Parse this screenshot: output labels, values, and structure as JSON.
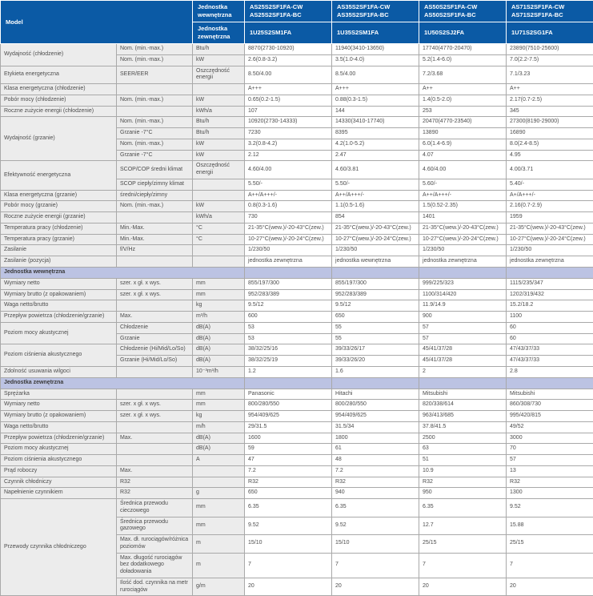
{
  "colors": {
    "header-blue": "#0b5aa5",
    "band": "#bcc3e3",
    "cell-gray": "#ececec",
    "border": "#a9a9a9",
    "text": "#4d4d4d"
  },
  "header": {
    "model_label": "Model",
    "indoor_label": "Jednostka wewnętrzna",
    "outdoor_label": "Jednostka zewnętrzna",
    "indoor_models": [
      "AS25S2SF1FA-CW\nAS25S2SF1FA-BC",
      "AS35S2SF1FA-CW\nAS35S2SF1FA-BC",
      "AS50S2SF1FA-CW\nAS50S2SF1FA-BC",
      "AS71S2SF1FA-CW\nAS71S2SF1FA-BC"
    ],
    "outdoor_models": [
      "1U25S2SM1FA",
      "1U35S2SM1FA",
      "1U50S2SJ2FA",
      "1U71S2SG1FA"
    ]
  },
  "rows": [
    {
      "cells": [
        {
          "t": "Wydajność (chłodzenie)",
          "c": "l",
          "rs": 2
        },
        {
          "t": "Nom. (min.-max.)",
          "c": "s"
        },
        {
          "t": "Btu/h",
          "c": "u"
        },
        {
          "t": "8870(2730-10920)"
        },
        {
          "t": "11940(3410-13650)"
        },
        {
          "t": "17740(4770-20470)"
        },
        {
          "t": "23890(7510-25600)"
        }
      ]
    },
    {
      "cells": [
        {
          "t": "Nom. (min.-max.)",
          "c": "s"
        },
        {
          "t": "kW",
          "c": "u"
        },
        {
          "t": "2.6(0.8-3.2)"
        },
        {
          "t": "3.5(1.0-4.0)"
        },
        {
          "t": "5.2(1.4-6.0)"
        },
        {
          "t": "7.0(2.2-7.5)"
        }
      ]
    },
    {
      "cells": [
        {
          "t": "Etykieta energetyczna",
          "c": "l"
        },
        {
          "t": "SEER/EER",
          "c": "s"
        },
        {
          "t": "Oszczędność energii",
          "c": "u"
        },
        {
          "t": "8.50/4.00"
        },
        {
          "t": "8.5/4.00"
        },
        {
          "t": "7.2/3.68"
        },
        {
          "t": "7.1/3.23"
        }
      ]
    },
    {
      "cells": [
        {
          "t": "Klasa energetyczna (chłodzenie)",
          "c": "l"
        },
        {
          "t": "",
          "c": "s"
        },
        {
          "t": "",
          "c": "u"
        },
        {
          "t": "A+++"
        },
        {
          "t": "A+++"
        },
        {
          "t": "A++"
        },
        {
          "t": "A++"
        }
      ]
    },
    {
      "cells": [
        {
          "t": "Pobór mocy (chłodzenie)",
          "c": "l"
        },
        {
          "t": "Nom. (min.-max.)",
          "c": "s"
        },
        {
          "t": "kW",
          "c": "u"
        },
        {
          "t": "0.65(0.2-1.5)"
        },
        {
          "t": "0.88(0.3-1.5)"
        },
        {
          "t": "1.4(0.5-2.0)"
        },
        {
          "t": "2.17(0.7-2.5)"
        }
      ]
    },
    {
      "cells": [
        {
          "t": "Roczne zużycie energii (chłodzenie)",
          "c": "l"
        },
        {
          "t": "",
          "c": "s"
        },
        {
          "t": "kWh/a",
          "c": "u"
        },
        {
          "t": "107"
        },
        {
          "t": "144"
        },
        {
          "t": "253"
        },
        {
          "t": "345"
        }
      ]
    },
    {
      "cells": [
        {
          "t": "Wydajność (grzanie)",
          "c": "l",
          "rs": 4
        },
        {
          "t": "Nom. (min.-max.)",
          "c": "s"
        },
        {
          "t": "Btu/h",
          "c": "u"
        },
        {
          "t": "10920(2730-14333)"
        },
        {
          "t": "14330(3410-17740)"
        },
        {
          "t": "20470(4770-23540)"
        },
        {
          "t": "27300(8190-29000)"
        }
      ]
    },
    {
      "cells": [
        {
          "t": "Grzanie -7°C",
          "c": "s"
        },
        {
          "t": "Btu/h",
          "c": "u"
        },
        {
          "t": "7230"
        },
        {
          "t": "8395"
        },
        {
          "t": "13890"
        },
        {
          "t": "16890"
        }
      ]
    },
    {
      "cells": [
        {
          "t": "Nom. (min.-max.)",
          "c": "s"
        },
        {
          "t": "kW",
          "c": "u"
        },
        {
          "t": "3.2(0.8-4.2)"
        },
        {
          "t": "4.2(1.0-5.2)"
        },
        {
          "t": "6.0(1.4-6.9)"
        },
        {
          "t": "8.0(2.4-8.5)"
        }
      ]
    },
    {
      "cells": [
        {
          "t": "Grzanie -7°C",
          "c": "s"
        },
        {
          "t": "kW",
          "c": "u"
        },
        {
          "t": "2.12"
        },
        {
          "t": "2.47"
        },
        {
          "t": "4.07"
        },
        {
          "t": "4.95"
        }
      ]
    },
    {
      "cells": [
        {
          "t": "Efektywność energetyczna",
          "c": "l",
          "rs": 2
        },
        {
          "t": "SCOP/COP średni klimat",
          "c": "s"
        },
        {
          "t": "Oszczędność energii",
          "c": "u"
        },
        {
          "t": "4.60/4.00"
        },
        {
          "t": "4.60/3.81"
        },
        {
          "t": "4.60/4.00"
        },
        {
          "t": "4.00/3.71"
        }
      ]
    },
    {
      "cells": [
        {
          "t": "SCOP ciepły/zimny klimat",
          "c": "s"
        },
        {
          "t": "",
          "c": "u"
        },
        {
          "t": "5.50/-"
        },
        {
          "t": "5.50/-"
        },
        {
          "t": "5.60/-"
        },
        {
          "t": "5.40/-"
        }
      ]
    },
    {
      "cells": [
        {
          "t": "Klasa energetyczna (grzanie)",
          "c": "l"
        },
        {
          "t": "średni/ciepły/zimny",
          "c": "s"
        },
        {
          "t": "",
          "c": "u"
        },
        {
          "t": "A++/A+++/-"
        },
        {
          "t": "A++/A+++/-"
        },
        {
          "t": "A++/A+++/-"
        },
        {
          "t": "A+/A+++/-"
        }
      ]
    },
    {
      "cells": [
        {
          "t": "Pobór mocy (grzanie)",
          "c": "l"
        },
        {
          "t": "Nom. (min.-max.)",
          "c": "s"
        },
        {
          "t": "kW",
          "c": "u"
        },
        {
          "t": "0.8(0.3-1.6)"
        },
        {
          "t": "1.1(0.5-1.6)"
        },
        {
          "t": "1.5(0.52-2.35)"
        },
        {
          "t": "2.16(0.7-2.9)"
        }
      ]
    },
    {
      "cells": [
        {
          "t": "Roczne zużycie energii (grzanie)",
          "c": "l"
        },
        {
          "t": "",
          "c": "s"
        },
        {
          "t": "kWh/a",
          "c": "u"
        },
        {
          "t": "730"
        },
        {
          "t": "854"
        },
        {
          "t": "1401"
        },
        {
          "t": "1959"
        }
      ]
    },
    {
      "cells": [
        {
          "t": "Temperatura pracy (chłodzenie)",
          "c": "l"
        },
        {
          "t": "Min.-Max.",
          "c": "s"
        },
        {
          "t": "°C",
          "c": "u"
        },
        {
          "t": "21-35°C(wew.)/-20-43°C(zew.)"
        },
        {
          "t": "21-35°C(wew.)/-20-43°C(zew.)"
        },
        {
          "t": "21-35°C(wew.)/-20-43°C(zew.)"
        },
        {
          "t": "21-35°C(wew.)/-20-43°C(zew.)"
        }
      ]
    },
    {
      "cells": [
        {
          "t": "Temperatura pracy (grzanie)",
          "c": "l"
        },
        {
          "t": "Min.-Max.",
          "c": "s"
        },
        {
          "t": "°C",
          "c": "u"
        },
        {
          "t": "10-27°C(wew.)/-20-24°C(zew.)"
        },
        {
          "t": "10-27°C(wew.)/-20-24°C(zew.)"
        },
        {
          "t": "10-27°C(wew.)/-20-24°C(zew.)"
        },
        {
          "t": "10-27°C(wew.)/-20-24°C(zew.)"
        }
      ]
    },
    {
      "cells": [
        {
          "t": "Zasilanie",
          "c": "l"
        },
        {
          "t": "f/V/Hz",
          "c": "s"
        },
        {
          "t": "",
          "c": "u"
        },
        {
          "t": "1/230/50"
        },
        {
          "t": "1/230/50"
        },
        {
          "t": "1/230/50"
        },
        {
          "t": "1/230/50"
        }
      ]
    },
    {
      "cells": [
        {
          "t": "Zasilanie (pozycja)",
          "c": "l"
        },
        {
          "t": "",
          "c": "s"
        },
        {
          "t": "",
          "c": "u"
        },
        {
          "t": "jednostka zewnętrzna"
        },
        {
          "t": "jednostka wewnętrzna"
        },
        {
          "t": "jednostka zewnętrzna"
        },
        {
          "t": "jednostka zewnętrzna"
        }
      ]
    },
    {
      "section": "Jednostka wewnętrzna"
    },
    {
      "cells": [
        {
          "t": "Wymiary netto",
          "c": "l"
        },
        {
          "t": "szer. x gł. x wys.",
          "c": "s"
        },
        {
          "t": "mm",
          "c": "u"
        },
        {
          "t": "855/197/300"
        },
        {
          "t": "855/197/300"
        },
        {
          "t": "999/225/323"
        },
        {
          "t": "1115/235/347"
        }
      ]
    },
    {
      "cells": [
        {
          "t": "Wymiary brutto (z opakowaniem)",
          "c": "l"
        },
        {
          "t": "szer. x gł. x wys.",
          "c": "s"
        },
        {
          "t": "mm",
          "c": "u"
        },
        {
          "t": "952/283/389"
        },
        {
          "t": "952/283/389"
        },
        {
          "t": "1100/314/420"
        },
        {
          "t": "1202/319/432"
        }
      ]
    },
    {
      "cells": [
        {
          "t": "Waga netto/brutto",
          "c": "l"
        },
        {
          "t": "",
          "c": "s"
        },
        {
          "t": "kg",
          "c": "u"
        },
        {
          "t": "9.5/12"
        },
        {
          "t": "9.5/12"
        },
        {
          "t": "11.9/14.9"
        },
        {
          "t": "15.2/18.2"
        }
      ]
    },
    {
      "cells": [
        {
          "t": "Przepływ powietrza (chłodzenie/grzanie)",
          "c": "l"
        },
        {
          "t": "Max.",
          "c": "s"
        },
        {
          "t": "m³/h",
          "c": "u"
        },
        {
          "t": "600"
        },
        {
          "t": "650"
        },
        {
          "t": "900"
        },
        {
          "t": "1100"
        }
      ]
    },
    {
      "cells": [
        {
          "t": "Poziom mocy akustycznej",
          "c": "l",
          "rs": 2
        },
        {
          "t": "Chłodzenie",
          "c": "s"
        },
        {
          "t": "dB(A)",
          "c": "u"
        },
        {
          "t": "53"
        },
        {
          "t": "55"
        },
        {
          "t": "57"
        },
        {
          "t": "60"
        }
      ]
    },
    {
      "cells": [
        {
          "t": "Grzanie",
          "c": "s"
        },
        {
          "t": "dB(A)",
          "c": "u"
        },
        {
          "t": "53"
        },
        {
          "t": "55"
        },
        {
          "t": "57"
        },
        {
          "t": "60"
        }
      ]
    },
    {
      "cells": [
        {
          "t": "Poziom ciśnienia akustycznego",
          "c": "l",
          "rs": 2
        },
        {
          "t": "Chłodzenie (Hi/Mid/Lo/So)",
          "c": "s"
        },
        {
          "t": "dB(A)",
          "c": "u"
        },
        {
          "t": "38/32/25/16"
        },
        {
          "t": "39/33/26/17"
        },
        {
          "t": "45/41/37/28"
        },
        {
          "t": "47/43/37/33"
        }
      ]
    },
    {
      "cells": [
        {
          "t": "Grzanie (Hi/Mid/Lo/So)",
          "c": "s"
        },
        {
          "t": "dB(A)",
          "c": "u"
        },
        {
          "t": "38/32/25/19"
        },
        {
          "t": "39/33/26/20"
        },
        {
          "t": "45/41/37/28"
        },
        {
          "t": "47/43/37/33"
        }
      ]
    },
    {
      "cells": [
        {
          "t": "Zdolność usuwania wilgoci",
          "c": "l"
        },
        {
          "t": "",
          "c": "s"
        },
        {
          "t": "10⁻³m³/h",
          "c": "u"
        },
        {
          "t": "1.2"
        },
        {
          "t": "1.6"
        },
        {
          "t": "2"
        },
        {
          "t": "2.8"
        }
      ]
    },
    {
      "section": "Jednostka zewnętrzna"
    },
    {
      "cells": [
        {
          "t": "Sprężarka",
          "c": "l"
        },
        {
          "t": "",
          "c": "s"
        },
        {
          "t": "mm",
          "c": "u"
        },
        {
          "t": "Panasonic"
        },
        {
          "t": "Hitachi"
        },
        {
          "t": "Mitsubishi"
        },
        {
          "t": "Mitsubishi"
        }
      ]
    },
    {
      "cells": [
        {
          "t": "Wymiary netto",
          "c": "l"
        },
        {
          "t": "szer. x gł. x wys.",
          "c": "s"
        },
        {
          "t": "mm",
          "c": "u"
        },
        {
          "t": "800/280/550"
        },
        {
          "t": "800/280/550"
        },
        {
          "t": "820/338/614"
        },
        {
          "t": "860/308/730"
        }
      ]
    },
    {
      "cells": [
        {
          "t": "Wymiary brutto (z opakowaniem)",
          "c": "l"
        },
        {
          "t": "szer. x gł. x wys.",
          "c": "s"
        },
        {
          "t": "kg",
          "c": "u"
        },
        {
          "t": "954/409/625"
        },
        {
          "t": "954/409/625"
        },
        {
          "t": "963/413/685"
        },
        {
          "t": "995/420/815"
        }
      ]
    },
    {
      "cells": [
        {
          "t": "Waga netto/brutto",
          "c": "l"
        },
        {
          "t": "",
          "c": "s"
        },
        {
          "t": "m/h",
          "c": "u"
        },
        {
          "t": "29/31.5"
        },
        {
          "t": "31.5/34"
        },
        {
          "t": "37.8/41.5"
        },
        {
          "t": "49/52"
        }
      ]
    },
    {
      "cells": [
        {
          "t": "Przepływ powietrza (chłodzenie/grzanie)",
          "c": "l"
        },
        {
          "t": "Max.",
          "c": "s"
        },
        {
          "t": "dB(A)",
          "c": "u"
        },
        {
          "t": "1600"
        },
        {
          "t": "1800"
        },
        {
          "t": "2500"
        },
        {
          "t": "3000"
        }
      ]
    },
    {
      "cells": [
        {
          "t": "Poziom mocy akustycznej",
          "c": "l"
        },
        {
          "t": "",
          "c": "s"
        },
        {
          "t": "dB(A)",
          "c": "u"
        },
        {
          "t": "59"
        },
        {
          "t": "61"
        },
        {
          "t": "63"
        },
        {
          "t": "70"
        }
      ]
    },
    {
      "cells": [
        {
          "t": "Poziom ciśnienia akustycznego",
          "c": "l"
        },
        {
          "t": "",
          "c": "s"
        },
        {
          "t": "A",
          "c": "u"
        },
        {
          "t": "47"
        },
        {
          "t": "48"
        },
        {
          "t": "51"
        },
        {
          "t": "57"
        }
      ]
    },
    {
      "cells": [
        {
          "t": "Prąd roboczy",
          "c": "l"
        },
        {
          "t": "Max.",
          "c": "s"
        },
        {
          "t": "",
          "c": "u"
        },
        {
          "t": "7.2"
        },
        {
          "t": "7.2"
        },
        {
          "t": "10.9"
        },
        {
          "t": "13"
        }
      ]
    },
    {
      "cells": [
        {
          "t": "Czynnik chłodniczy",
          "c": "l"
        },
        {
          "t": "R32",
          "c": "s"
        },
        {
          "t": "",
          "c": "u"
        },
        {
          "t": "R32"
        },
        {
          "t": "R32"
        },
        {
          "t": "R32"
        },
        {
          "t": "R32"
        }
      ]
    },
    {
      "cells": [
        {
          "t": "Napełnienie czynnikiem",
          "c": "l"
        },
        {
          "t": "R32",
          "c": "s"
        },
        {
          "t": "g",
          "c": "u"
        },
        {
          "t": "650"
        },
        {
          "t": "940"
        },
        {
          "t": "950"
        },
        {
          "t": "1300"
        }
      ]
    },
    {
      "cells": [
        {
          "t": "Przewody czynnika chłodniczego",
          "c": "l",
          "rs": 5
        },
        {
          "t": "Średnica przewodu cieczowego",
          "c": "s"
        },
        {
          "t": "mm",
          "c": "u"
        },
        {
          "t": "6.35"
        },
        {
          "t": "6.35"
        },
        {
          "t": "6.35"
        },
        {
          "t": "9.52"
        }
      ]
    },
    {
      "cells": [
        {
          "t": "Średnica przewodu gazowego",
          "c": "s"
        },
        {
          "t": "mm",
          "c": "u"
        },
        {
          "t": "9.52"
        },
        {
          "t": "9.52"
        },
        {
          "t": "12.7"
        },
        {
          "t": "15.88"
        }
      ]
    },
    {
      "cells": [
        {
          "t": "Max. dł. rurociągów/różnica poziomów",
          "c": "s"
        },
        {
          "t": "m",
          "c": "u"
        },
        {
          "t": "15/10"
        },
        {
          "t": "15/10"
        },
        {
          "t": "25/15"
        },
        {
          "t": "25/15"
        }
      ]
    },
    {
      "cells": [
        {
          "t": "Max. długość rurociągów bez dodatkowego doładowania",
          "c": "s"
        },
        {
          "t": "m",
          "c": "u"
        },
        {
          "t": "7"
        },
        {
          "t": "7"
        },
        {
          "t": "7"
        },
        {
          "t": "7"
        }
      ]
    },
    {
      "cells": [
        {
          "t": "Ilość dod. czynnika na metr rurociągów",
          "c": "s"
        },
        {
          "t": "g/m",
          "c": "u"
        },
        {
          "t": "20"
        },
        {
          "t": "20"
        },
        {
          "t": "20"
        },
        {
          "t": "20"
        }
      ]
    }
  ]
}
